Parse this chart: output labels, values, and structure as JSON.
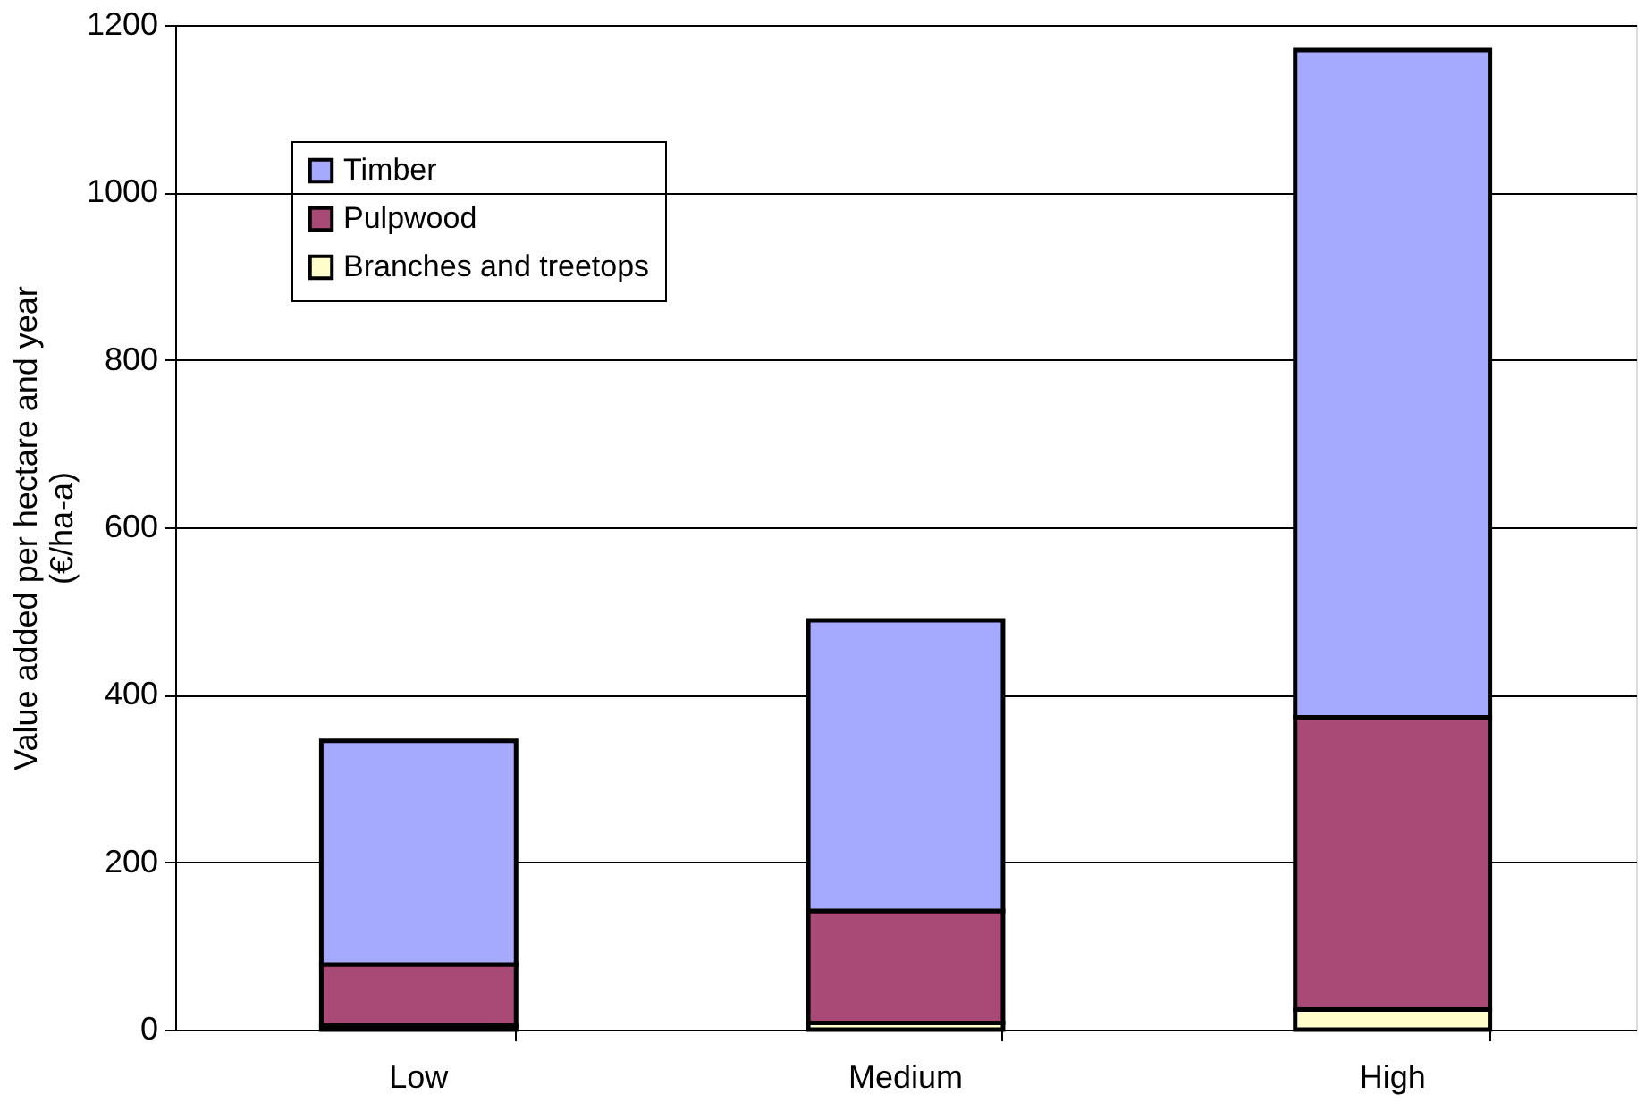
{
  "chart_data": {
    "type": "bar",
    "stacked": true,
    "ylabel": "Value added per hectare and year\n(€/ha-a)",
    "categories": [
      "Low",
      "Medium",
      "High"
    ],
    "series": [
      {
        "name": "Branches and treetops",
        "color": "#ffffcc",
        "values": [
          5,
          8,
          24
        ]
      },
      {
        "name": "Pulpwood",
        "color": "#a94a76",
        "values": [
          73,
          134,
          349
        ]
      },
      {
        "name": "Timber",
        "color": "#a6aaff",
        "values": [
          267,
          347,
          797
        ]
      }
    ],
    "ylim": [
      0,
      1200
    ],
    "yticks": [
      0,
      200,
      400,
      600,
      800,
      1000,
      1200
    ],
    "grid": "y",
    "legend": "top left"
  }
}
